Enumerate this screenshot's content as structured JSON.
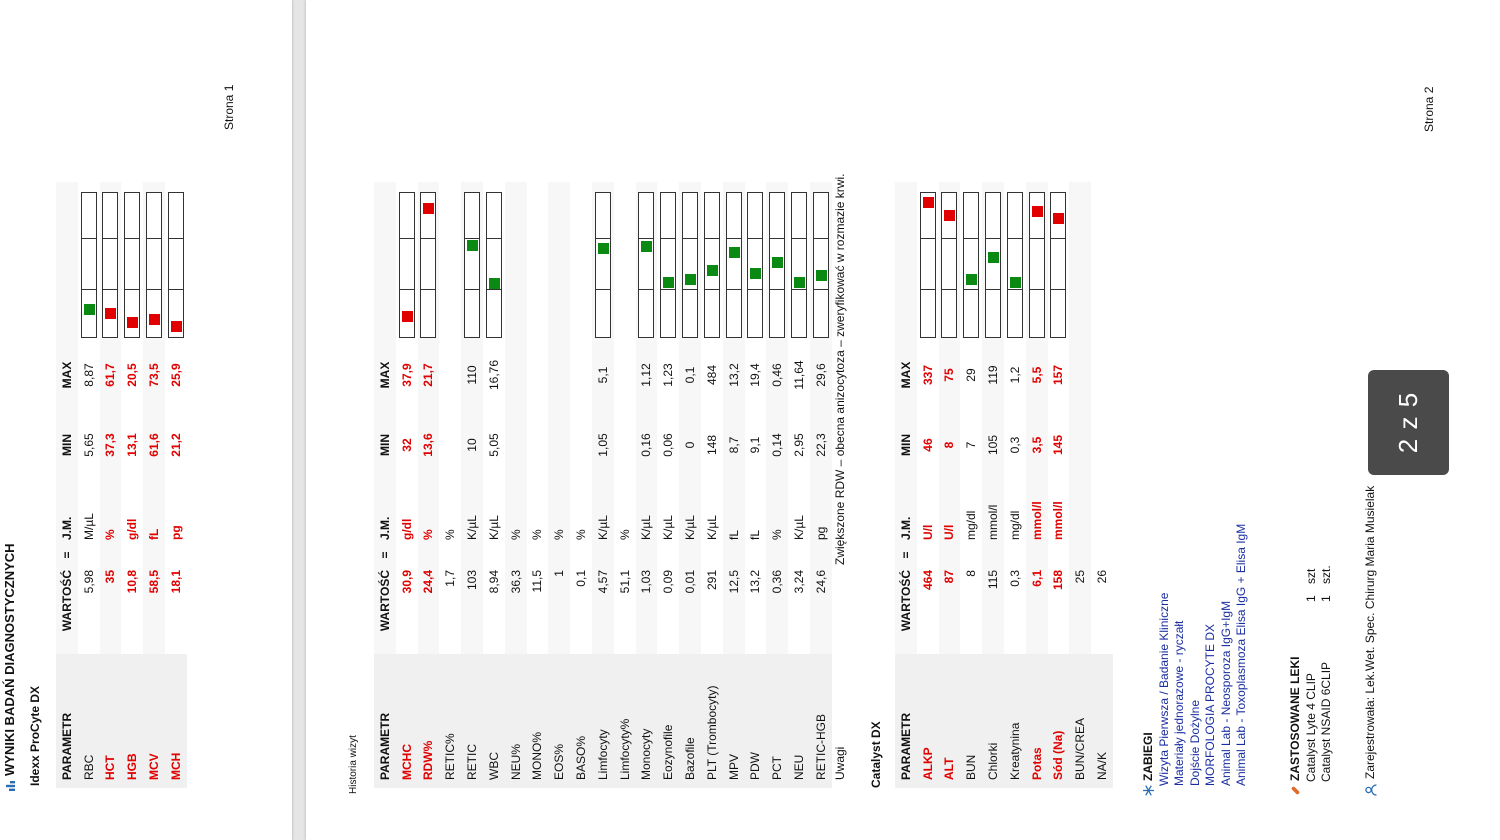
{
  "page1": {
    "header": "WYNIKI BADAŃ DIAGNOSTYCZNYCH",
    "device": "Idexx ProCyte DX",
    "page_label": "Strona 1",
    "columns": [
      "PARAMETR",
      "WARTOŚĆ",
      "=",
      "J.M.",
      "MIN",
      "MAX"
    ],
    "rows": [
      {
        "param": "RBC",
        "value": "5,98",
        "unit": "M/µL",
        "min": "5,65",
        "max": "8,87",
        "flag": "",
        "level": 0.15
      },
      {
        "param": "HCT",
        "value": "35",
        "unit": "%",
        "min": "37,3",
        "max": "61,7",
        "flag": "low",
        "level": 0.12
      },
      {
        "param": "HGB",
        "value": "10,8",
        "unit": "g/dl",
        "min": "13,1",
        "max": "20,5",
        "flag": "low",
        "level": 0.05
      },
      {
        "param": "MCV",
        "value": "58,5",
        "unit": "fL",
        "min": "61,6",
        "max": "73,5",
        "flag": "low",
        "level": 0.08
      },
      {
        "param": "MCH",
        "value": "18,1",
        "unit": "pg",
        "min": "21,2",
        "max": "25,9",
        "flag": "low",
        "level": 0.02
      }
    ]
  },
  "page2": {
    "history_label": "Historia wizyt",
    "page_label": "Strona 2",
    "columns": [
      "PARAMETR",
      "WARTOŚĆ",
      "=",
      "J.M.",
      "MIN",
      "MAX"
    ],
    "rows": [
      {
        "param": "MCHC",
        "value": "30,9",
        "unit": "g/dl",
        "min": "32",
        "max": "37,9",
        "flag": "low",
        "level": 0.1
      },
      {
        "param": "RDW%",
        "value": "24,4",
        "unit": "%",
        "min": "13,6",
        "max": "21,7",
        "flag": "high",
        "level": 0.92
      },
      {
        "param": "RETIC%",
        "value": "1,7",
        "unit": "%",
        "min": "",
        "max": "",
        "flag": "",
        "level": null
      },
      {
        "param": "RETIC",
        "value": "103",
        "unit": "K/µL",
        "min": "10",
        "max": "110",
        "flag": "",
        "level": 0.64
      },
      {
        "param": "WBC",
        "value": "8,94",
        "unit": "K/µL",
        "min": "5,05",
        "max": "16,76",
        "flag": "",
        "level": 0.35
      },
      {
        "param": "NEU%",
        "value": "36,3",
        "unit": "%",
        "min": "",
        "max": "",
        "flag": "",
        "level": null
      },
      {
        "param": "MONO%",
        "value": "11,5",
        "unit": "%",
        "min": "",
        "max": "",
        "flag": "",
        "level": null
      },
      {
        "param": "EOS%",
        "value": "1",
        "unit": "%",
        "min": "",
        "max": "",
        "flag": "",
        "level": null
      },
      {
        "param": "BASO%",
        "value": "0,1",
        "unit": "%",
        "min": "",
        "max": "",
        "flag": "",
        "level": null
      },
      {
        "param": "Limfocyty",
        "value": "4,57",
        "unit": "K/µL",
        "min": "1,05",
        "max": "5,1",
        "flag": "",
        "level": 0.62
      },
      {
        "param": "Limfocyty%",
        "value": "51,1",
        "unit": "%",
        "min": "",
        "max": "",
        "flag": "",
        "level": null
      },
      {
        "param": "Monocyty",
        "value": "1,03",
        "unit": "K/µL",
        "min": "0,16",
        "max": "1,12",
        "flag": "",
        "level": 0.63
      },
      {
        "param": "Eozynofile",
        "value": "0,09",
        "unit": "K/µL",
        "min": "0,06",
        "max": "1,23",
        "flag": "",
        "level": 0.36
      },
      {
        "param": "Bazofile",
        "value": "0,01",
        "unit": "K/µL",
        "min": "0",
        "max": "0,1",
        "flag": "",
        "level": 0.38
      },
      {
        "param": "PLT (Trombocyty)",
        "value": "291",
        "unit": "K/µL",
        "min": "148",
        "max": "484",
        "flag": "",
        "level": 0.45
      },
      {
        "param": "MPV",
        "value": "12,5",
        "unit": "fL",
        "min": "8,7",
        "max": "13,2",
        "flag": "",
        "level": 0.59
      },
      {
        "param": "PDW",
        "value": "13,2",
        "unit": "fL",
        "min": "9,1",
        "max": "19,4",
        "flag": "",
        "level": 0.43
      },
      {
        "param": "PCT",
        "value": "0,36",
        "unit": "%",
        "min": "0,14",
        "max": "0,46",
        "flag": "",
        "level": 0.51
      },
      {
        "param": "NEU",
        "value": "3,24",
        "unit": "K/µL",
        "min": "2,95",
        "max": "11,64",
        "flag": "",
        "level": 0.36
      },
      {
        "param": "RETIC-HGB",
        "value": "24,6",
        "unit": "pg",
        "min": "22,3",
        "max": "29,6",
        "flag": "",
        "level": 0.41
      }
    ],
    "remarks_param": "Uwagi",
    "remarks_text": "Zwiększone RDW – obecna anizocytoza – zweryfikować w rozmazie krwi.",
    "catalyst_title": "Catalyst DX",
    "catalyst_rows": [
      {
        "param": "ALKP",
        "value": "464",
        "unit": "U/l",
        "min": "46",
        "max": "337",
        "flag": "high",
        "level": 0.97
      },
      {
        "param": "ALT",
        "value": "87",
        "unit": "U/l",
        "min": "8",
        "max": "75",
        "flag": "high",
        "level": 0.87
      },
      {
        "param": "BUN",
        "value": "8",
        "unit": "mg/dl",
        "min": "7",
        "max": "29",
        "flag": "",
        "level": 0.38
      },
      {
        "param": "Chlorki",
        "value": "115",
        "unit": "mmol/l",
        "min": "105",
        "max": "119",
        "flag": "",
        "level": 0.55
      },
      {
        "param": "Kreatynina",
        "value": "0,3",
        "unit": "mg/dl",
        "min": "0,3",
        "max": "1,2",
        "flag": "",
        "level": 0.36
      },
      {
        "param": "Potas",
        "value": "6,1",
        "unit": "mmol/l",
        "min": "3,5",
        "max": "5,5",
        "flag": "high",
        "level": 0.9
      },
      {
        "param": "Sód (Na)",
        "value": "158",
        "unit": "mmol/l",
        "min": "145",
        "max": "157",
        "flag": "high",
        "level": 0.85
      },
      {
        "param": "BUN/CREA",
        "value": "25",
        "unit": "",
        "min": "",
        "max": "",
        "flag": "",
        "level": null
      },
      {
        "param": "NA/K",
        "value": "26",
        "unit": "",
        "min": "",
        "max": "",
        "flag": "",
        "level": null
      }
    ],
    "procedures_title": "ZABIEGI",
    "procedures": [
      "Wizyta Pierwsza / Badanie Kliniczne",
      "Materiały jednorazowe - ryczałt",
      "Dojście Dożylne",
      "MORFOLOGIA PROCYTE DX",
      "Animal Lab - Neosporoza IgG+IgM",
      "Animal Lab - Toxoplasmoza Elisa IgG + Elisa IgM"
    ],
    "drugs_title": "ZASTOSOWANE LEKI",
    "drugs": [
      {
        "name": "Catalyst Lyte 4 CLIP",
        "qty": "1",
        "unit": "szt"
      },
      {
        "name": "Catalyst NSAID 6CLIP",
        "qty": "1",
        "unit": "szt."
      }
    ],
    "registered_by": "Zarejestrowała: Lek.Wet. Spec. Chirurg Maria Musielak"
  },
  "pager": {
    "text": "2 z 5"
  },
  "colors": {
    "out_of_range": "#e00000",
    "in_range": "#0a8a12"
  },
  "icons": {
    "header": "chart-icon",
    "procedures": "snowflake-icon",
    "drugs": "pill-icon",
    "registered_by": "user-icon"
  }
}
